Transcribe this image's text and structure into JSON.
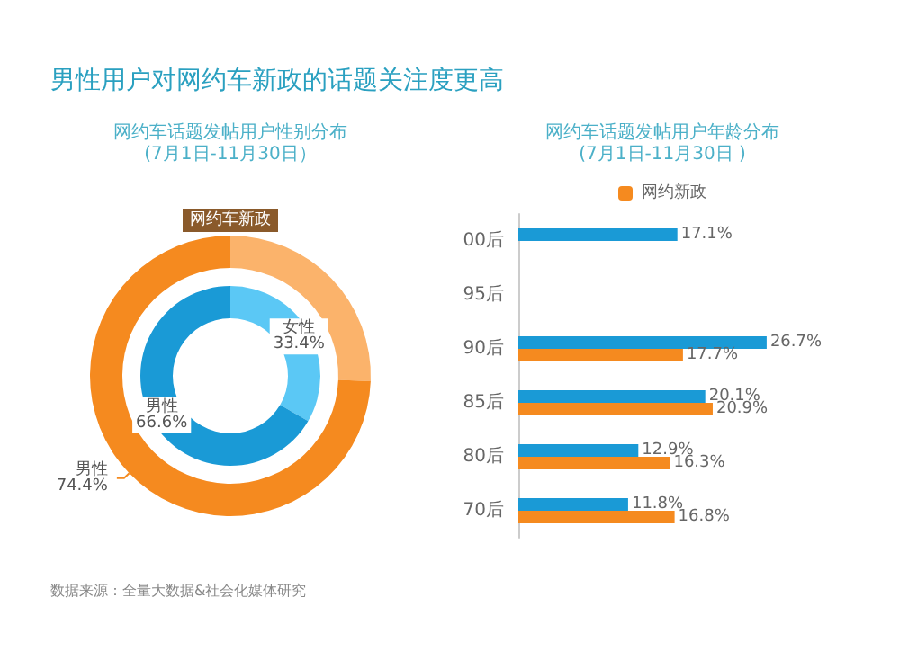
{
  "chart_data": [
    {
      "type": "donut",
      "title": "网约车话题发帖用户性别分布",
      "subtitle": "(7月1日-11月30日）",
      "annotations": [
        "男性用户对网约车新政的话题关注度更高",
        "数据来源：全量大数据&社会化媒体研究"
      ],
      "categories": [
        "女性",
        "男性"
      ],
      "legend": false,
      "series": [
        {
          "name": "网约车新政",
          "colors": [
            "#fbb36b",
            "#f58a1f"
          ],
          "values": [
            25.6,
            74.4
          ],
          "value_labels": [
            null,
            "74.4%"
          ]
        },
        {
          "colors": [
            "#5bc8f5",
            "#1a9ad6"
          ],
          "values": [
            33.4,
            66.6
          ],
          "value_labels": [
            "33.4%",
            "66.6%"
          ]
        }
      ]
    },
    {
      "type": "bar",
      "orientation": "horizontal",
      "title": "网约车话题发帖用户年龄分布",
      "subtitle": "(7月1日-11月30日 )",
      "categories": [
        "00后",
        "95后",
        "90后",
        "85后",
        "80后",
        "70后"
      ],
      "legend": "top",
      "series": [
        {
          "color": "#1a9ad6",
          "values": [
            17.1,
            null,
            26.7,
            20.1,
            12.9,
            11.8
          ],
          "value_labels": [
            "17.1%",
            null,
            "26.7%",
            "20.1%",
            "12.9%",
            "11.8%"
          ]
        },
        {
          "name": "网约新政",
          "color": "#f58a1f",
          "values": [
            null,
            null,
            17.7,
            20.9,
            16.3,
            16.8
          ],
          "value_labels": [
            null,
            null,
            "17.7%",
            "20.9%",
            "16.3%",
            "16.8%"
          ]
        }
      ]
    }
  ]
}
